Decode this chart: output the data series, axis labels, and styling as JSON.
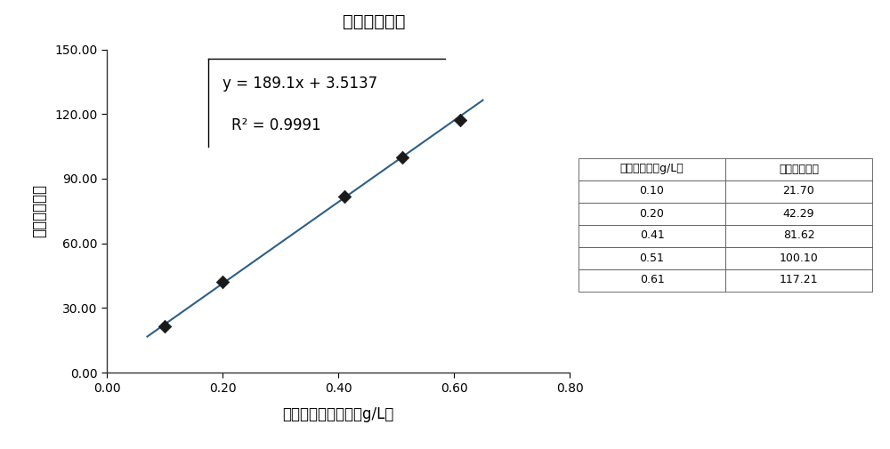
{
  "title": "瓜氨酸线性图",
  "xlabel": "对照品瓜氨酸浓度（g/L）",
  "ylabel": "瓜氨酸峰面积",
  "x_data": [
    0.1,
    0.2,
    0.41,
    0.51,
    0.61
  ],
  "y_data": [
    21.7,
    42.29,
    81.62,
    100.1,
    117.21
  ],
  "slope": 189.1,
  "intercept": 3.5137,
  "r_squared": 0.9991,
  "equation_text": "y = 189.1x + 3.5137",
  "r2_text": "R² = 0.9991",
  "x_line_start": 0.07,
  "x_line_end": 0.65,
  "xlim": [
    0.0,
    0.8
  ],
  "ylim": [
    0.0,
    150.0
  ],
  "xticks": [
    0.0,
    0.2,
    0.4,
    0.6,
    0.8
  ],
  "yticks": [
    0.0,
    30.0,
    60.0,
    90.0,
    120.0,
    150.0
  ],
  "marker": "D",
  "marker_color": "#1a1a1a",
  "line_color": "#2c5f8a",
  "background_color": "#ffffff",
  "table_col1_header": "瓜氨酸浓度（g/L）",
  "table_col2_header": "瓜氨酸峰面积",
  "table_data": [
    [
      0.1,
      21.7
    ],
    [
      0.2,
      42.29
    ],
    [
      0.41,
      81.62
    ],
    [
      0.51,
      100.1
    ],
    [
      0.61,
      117.21
    ]
  ]
}
